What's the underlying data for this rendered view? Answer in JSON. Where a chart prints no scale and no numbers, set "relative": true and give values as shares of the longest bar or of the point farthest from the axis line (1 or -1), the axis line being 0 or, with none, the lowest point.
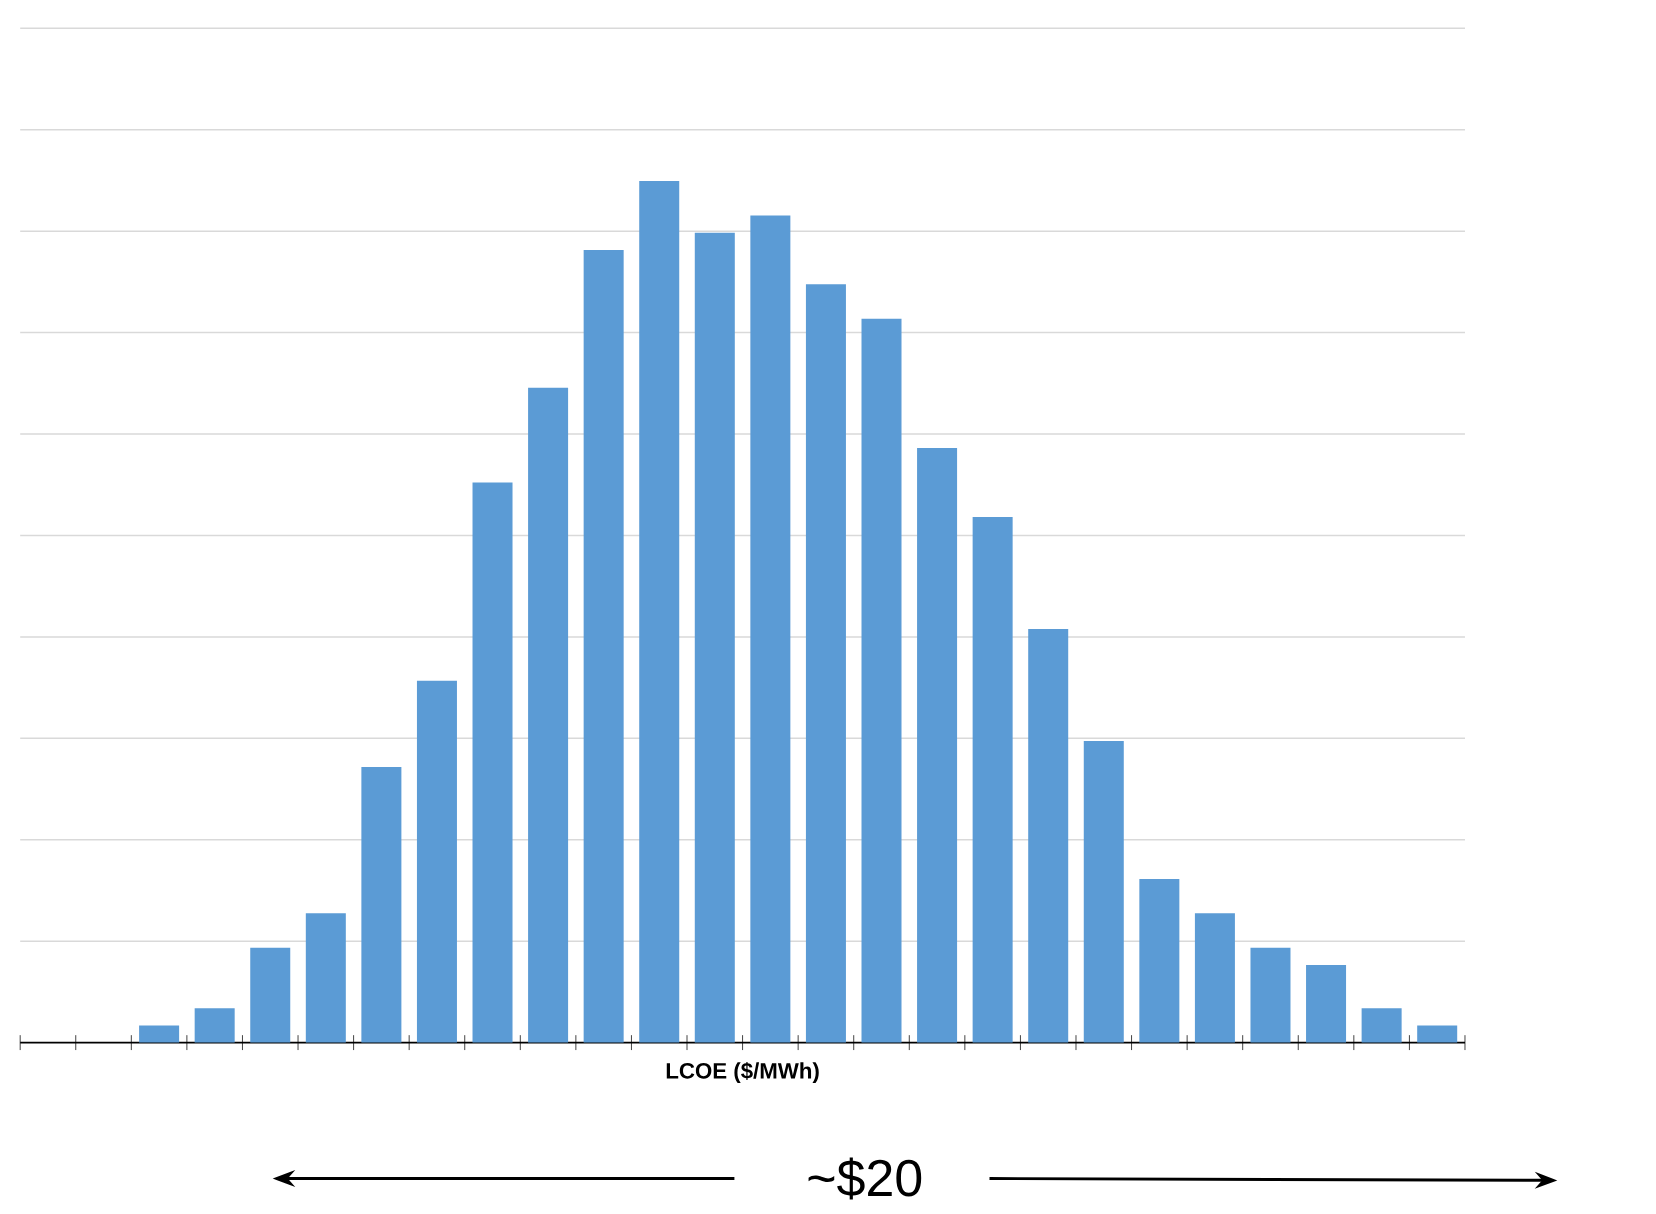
{
  "chart_data": {
    "type": "bar",
    "relative": true,
    "xlabel": "LCOE ($/MWh)",
    "color": "#5b9bd5",
    "grid": "y",
    "categories": [
      null,
      null,
      null,
      null,
      null,
      null,
      null,
      null,
      null,
      null,
      null,
      null,
      null,
      null,
      null,
      null,
      null,
      null,
      null,
      null,
      null,
      null,
      null,
      null
    ],
    "values": [
      0.02,
      0.04,
      0.11,
      0.15,
      0.32,
      0.42,
      0.65,
      0.76,
      0.92,
      1,
      0.94,
      0.96,
      0.88,
      0.84,
      0.69,
      0.61,
      0.48,
      0.35,
      0.19,
      0.15,
      0.11,
      0.09,
      0.04,
      0.02
    ],
    "annotations": [
      "~$20"
    ]
  }
}
